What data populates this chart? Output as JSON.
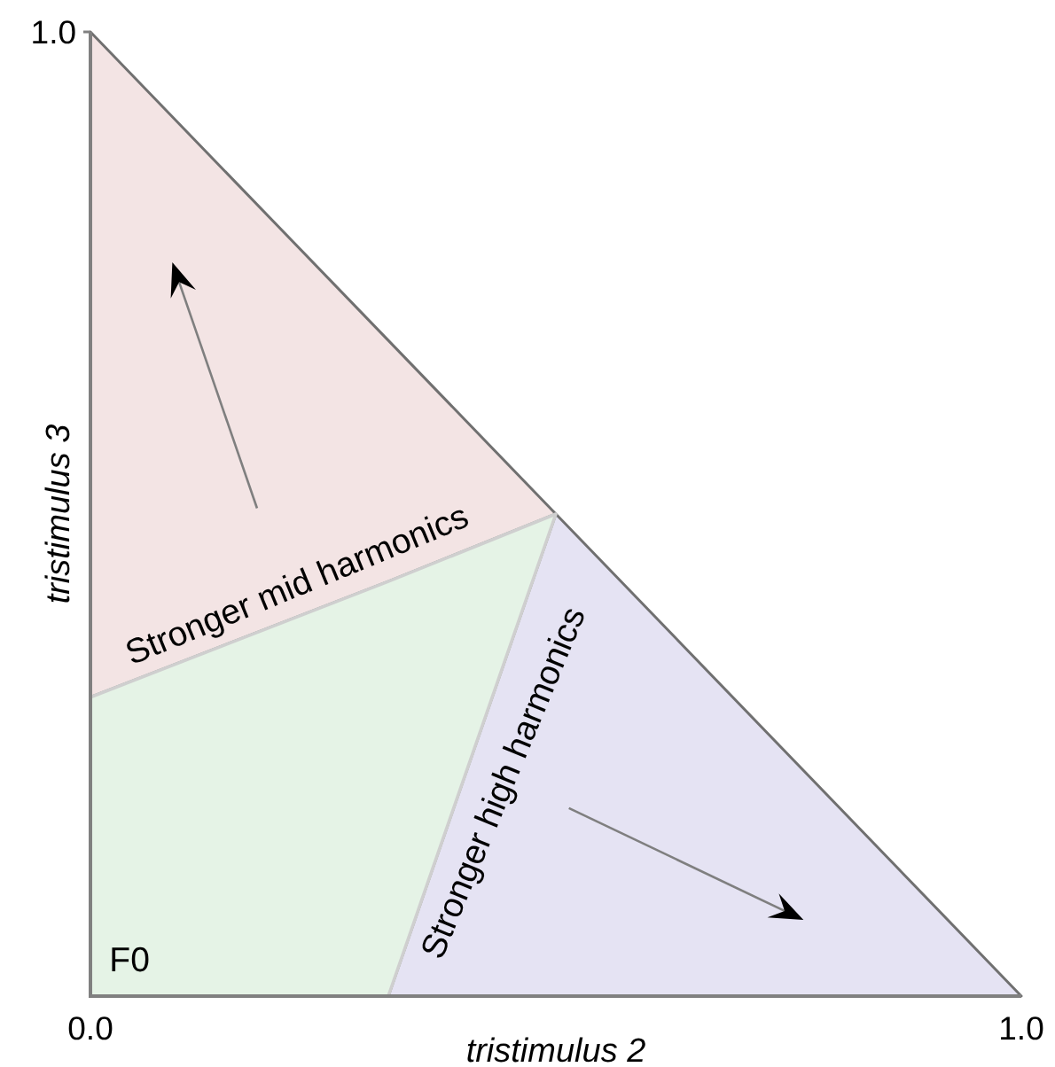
{
  "chart_data": {
    "type": "area",
    "stacked": true,
    "x": [
      0,
      0.32,
      0.5,
      1
    ],
    "series": [
      {
        "color": "#e5e3f3",
        "values": [
          null,
          0,
          0.5,
          0
        ]
      },
      {
        "color": "#e5f3e6",
        "values": [
          0.31,
          0.43,
          0,
          null
        ]
      },
      {
        "color": "#f3e4e4",
        "values": [
          0.69,
          0.25,
          0,
          null
        ]
      }
    ],
    "xlim": [
      0,
      1
    ],
    "ylim": [
      0,
      1
    ],
    "xticks": [
      {
        "value": 0,
        "label": "0.0"
      },
      {
        "value": 1,
        "label": "1.0"
      }
    ],
    "yticks": [
      {
        "value": 1,
        "label": "1.0"
      }
    ],
    "xlabel": "tristimulus 2",
    "ylabel": "tristimulus 3",
    "annotations": [
      "Stronger mid harmonics",
      "Stronger high harmonics",
      "F0"
    ]
  }
}
